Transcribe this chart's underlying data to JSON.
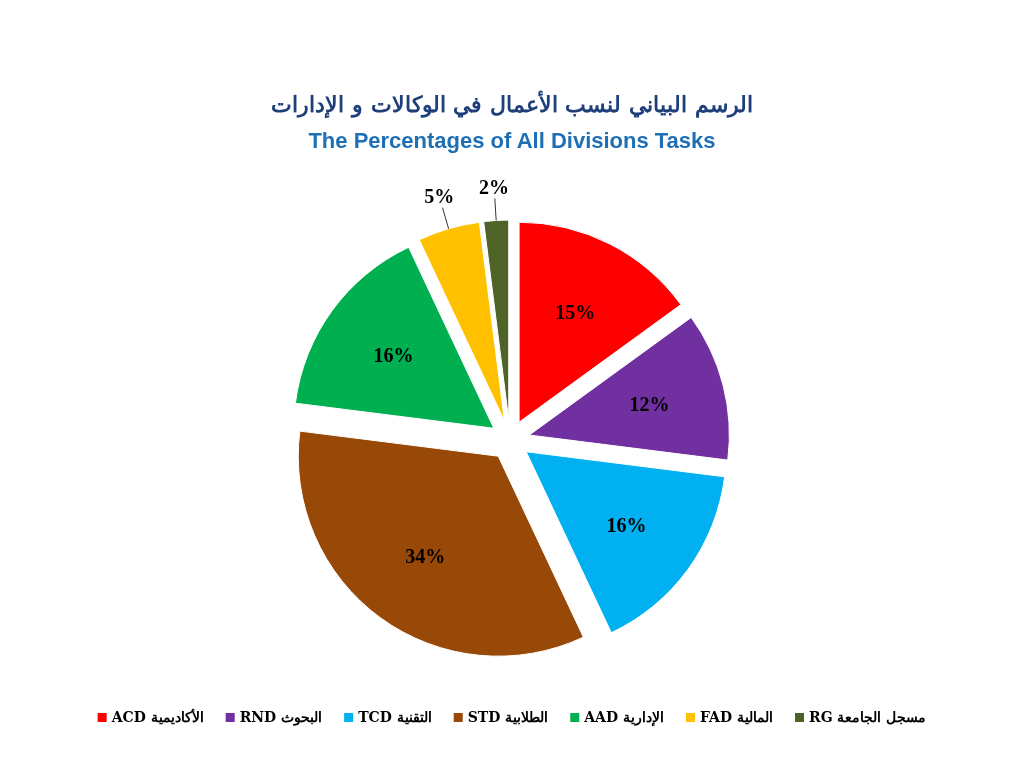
{
  "chart_data": {
    "type": "pie",
    "title": "الرسم البياني لنسب الأعمال في الوكالات و الإدارات",
    "subtitle": "The Percentages of All Divisions Tasks",
    "categories": [
      "ACD الأكاديمية",
      "RND البحوث",
      "TCD التقنية",
      "STD الطلابية",
      "AAD الإدارية",
      "FAD المالية",
      "RG مسجل الجامعة"
    ],
    "values": [
      15,
      12,
      16,
      34,
      16,
      5,
      2
    ],
    "colors": [
      "#ff0000",
      "#7030a0",
      "#00b0f0",
      "#984807",
      "#00b050",
      "#ffc000",
      "#4f6228"
    ],
    "value_labels": [
      "15%",
      "12%",
      "16%",
      "34%",
      "16%",
      "5%",
      "2%"
    ],
    "legend": "bottom"
  }
}
